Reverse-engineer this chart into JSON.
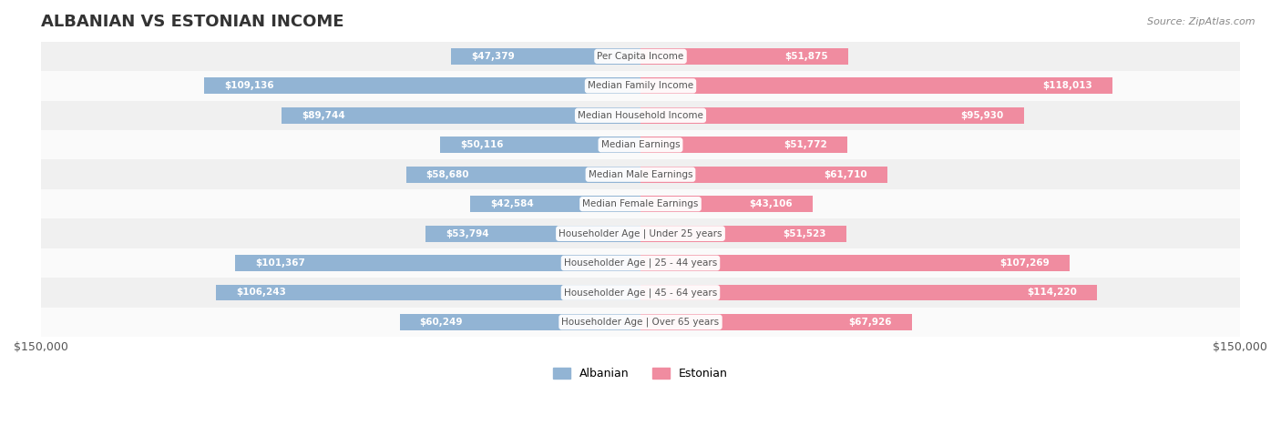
{
  "title": "ALBANIAN VS ESTONIAN INCOME",
  "source": "Source: ZipAtlas.com",
  "categories": [
    "Per Capita Income",
    "Median Family Income",
    "Median Household Income",
    "Median Earnings",
    "Median Male Earnings",
    "Median Female Earnings",
    "Householder Age | Under 25 years",
    "Householder Age | 25 - 44 years",
    "Householder Age | 45 - 64 years",
    "Householder Age | Over 65 years"
  ],
  "albanian_values": [
    47379,
    109136,
    89744,
    50116,
    58680,
    42584,
    53794,
    101367,
    106243,
    60249
  ],
  "estonian_values": [
    51875,
    118013,
    95930,
    51772,
    61710,
    43106,
    51523,
    107269,
    114220,
    67926
  ],
  "albanian_labels": [
    "$47,379",
    "$109,136",
    "$89,744",
    "$50,116",
    "$58,680",
    "$42,584",
    "$53,794",
    "$101,367",
    "$106,243",
    "$60,249"
  ],
  "estonian_labels": [
    "$51,875",
    "$118,013",
    "$95,930",
    "$51,772",
    "$61,710",
    "$43,106",
    "$51,523",
    "$107,269",
    "$114,220",
    "$67,926"
  ],
  "albanian_color": "#92b4d4",
  "estonian_color": "#f08ca0",
  "albanian_color_solid": "#5b8fc7",
  "estonian_color_solid": "#e8607a",
  "albanian_label_color_inside": "#ffffff",
  "estonian_label_color_inside": "#ffffff",
  "albanian_label_color_outside": "#555555",
  "estonian_label_color_outside": "#555555",
  "max_value": 150000,
  "background_row_light": "#f5f5f5",
  "background_row_dark": "#ebebeb",
  "bar_height": 0.55,
  "center_label_bg": "#ffffff",
  "center_label_color": "#555555"
}
